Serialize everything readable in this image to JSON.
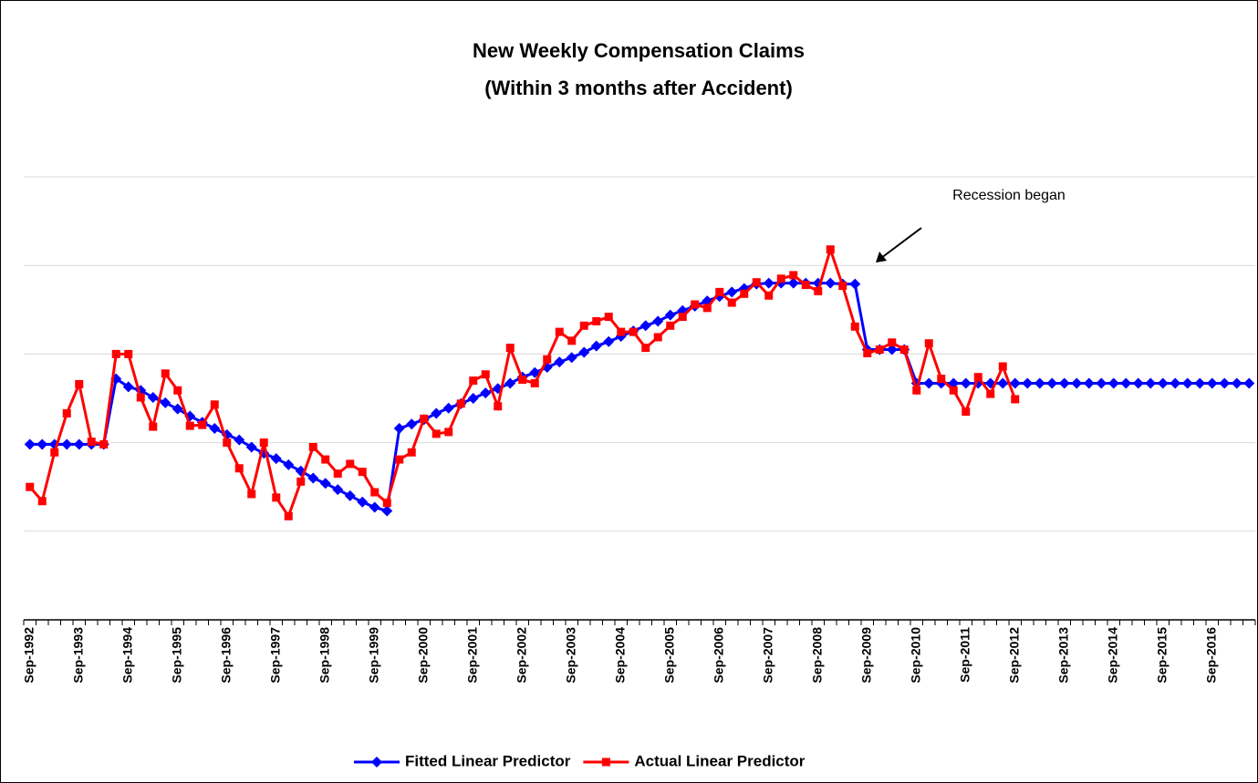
{
  "chart_data": {
    "type": "line",
    "title": "New Weekly Compensation Claims",
    "subtitle": "(Within 3 months after Accident)",
    "annotation": "Recession began",
    "categories": [
      "Sep-1992",
      null,
      null,
      null,
      "Sep-1993",
      null,
      null,
      null,
      "Sep-1994",
      null,
      null,
      null,
      "Sep-1995",
      null,
      null,
      null,
      "Sep-1996",
      null,
      null,
      null,
      "Sep-1997",
      null,
      null,
      null,
      "Sep-1998",
      null,
      null,
      null,
      "Sep-1999",
      null,
      null,
      null,
      "Sep-2000",
      null,
      null,
      null,
      "Sep-2001",
      null,
      null,
      null,
      "Sep-2002",
      null,
      null,
      null,
      "Sep-2003",
      null,
      null,
      null,
      "Sep-2004",
      null,
      null,
      null,
      "Sep-2005",
      null,
      null,
      null,
      "Sep-2006",
      null,
      null,
      null,
      "Sep-2007",
      null,
      null,
      null,
      "Sep-2008",
      null,
      null,
      null,
      "Sep-2009",
      null,
      null,
      null,
      "Sep-2010",
      null,
      null,
      null,
      "Sep-2011",
      null,
      null,
      null,
      "Sep-2012",
      null,
      null,
      null,
      "Sep-2013",
      null,
      null,
      null,
      "Sep-2014",
      null,
      null,
      null,
      "Sep-2015",
      null,
      null,
      null,
      "Sep-2016",
      null,
      null,
      null
    ],
    "series": [
      {
        "name": "Fitted Linear Predictor",
        "color": "#0000ff",
        "marker": "diamond",
        "values": [
          1.98,
          1.98,
          1.98,
          1.98,
          1.98,
          1.98,
          1.98,
          2.72,
          2.63,
          2.59,
          2.51,
          2.45,
          2.38,
          2.3,
          2.23,
          2.16,
          2.09,
          2.03,
          1.95,
          1.88,
          1.82,
          1.75,
          1.68,
          1.6,
          1.54,
          1.47,
          1.4,
          1.33,
          1.27,
          1.23,
          2.16,
          2.21,
          2.26,
          2.33,
          2.39,
          2.44,
          2.5,
          2.56,
          2.61,
          2.67,
          2.74,
          2.79,
          2.85,
          2.91,
          2.96,
          3.02,
          3.09,
          3.14,
          3.2,
          3.26,
          3.32,
          3.37,
          3.44,
          3.49,
          3.54,
          3.6,
          3.65,
          3.7,
          3.74,
          3.79,
          3.8,
          3.8,
          3.8,
          3.8,
          3.8,
          3.8,
          3.79,
          3.79,
          3.05,
          3.05,
          3.05,
          3.05,
          2.67,
          2.67,
          2.67,
          2.67,
          2.67,
          2.67,
          2.67,
          2.67,
          2.67,
          2.67,
          2.67,
          2.67,
          2.67,
          2.67,
          2.67,
          2.67,
          2.67,
          2.67,
          2.67,
          2.67,
          2.67,
          2.67,
          2.67,
          2.67,
          2.67,
          2.67,
          2.67,
          2.67
        ]
      },
      {
        "name": "Actual Linear Predictor",
        "color": "#ff0000",
        "marker": "square",
        "values": [
          1.5,
          1.34,
          1.89,
          2.33,
          2.66,
          2.01,
          1.98,
          3.0,
          3.0,
          2.51,
          2.18,
          2.78,
          2.59,
          2.19,
          2.2,
          2.43,
          2.0,
          1.71,
          1.42,
          2.0,
          1.38,
          1.17,
          1.56,
          1.95,
          1.81,
          1.65,
          1.76,
          1.67,
          1.44,
          1.32,
          1.81,
          1.89,
          2.27,
          2.1,
          2.12,
          2.44,
          2.7,
          2.77,
          2.41,
          3.07,
          2.71,
          2.67,
          2.94,
          3.25,
          3.15,
          3.32,
          3.37,
          3.42,
          3.25,
          3.25,
          3.07,
          3.19,
          3.32,
          3.42,
          3.56,
          3.52,
          3.7,
          3.58,
          3.68,
          3.81,
          3.66,
          3.85,
          3.89,
          3.78,
          3.71,
          4.18,
          3.77,
          3.31,
          3.01,
          3.05,
          3.13,
          3.05,
          2.59,
          3.12,
          2.72,
          2.59,
          2.35,
          2.74,
          2.55,
          2.86,
          2.49,
          null,
          null,
          null,
          null,
          null,
          null,
          null,
          null,
          null,
          null,
          null,
          null,
          null,
          null,
          null,
          null,
          null,
          null,
          null
        ]
      }
    ],
    "ylim": [
      0,
      5
    ],
    "yticks": [
      0,
      1,
      2,
      3,
      4,
      5
    ],
    "grid": true,
    "legend": "bottom"
  }
}
